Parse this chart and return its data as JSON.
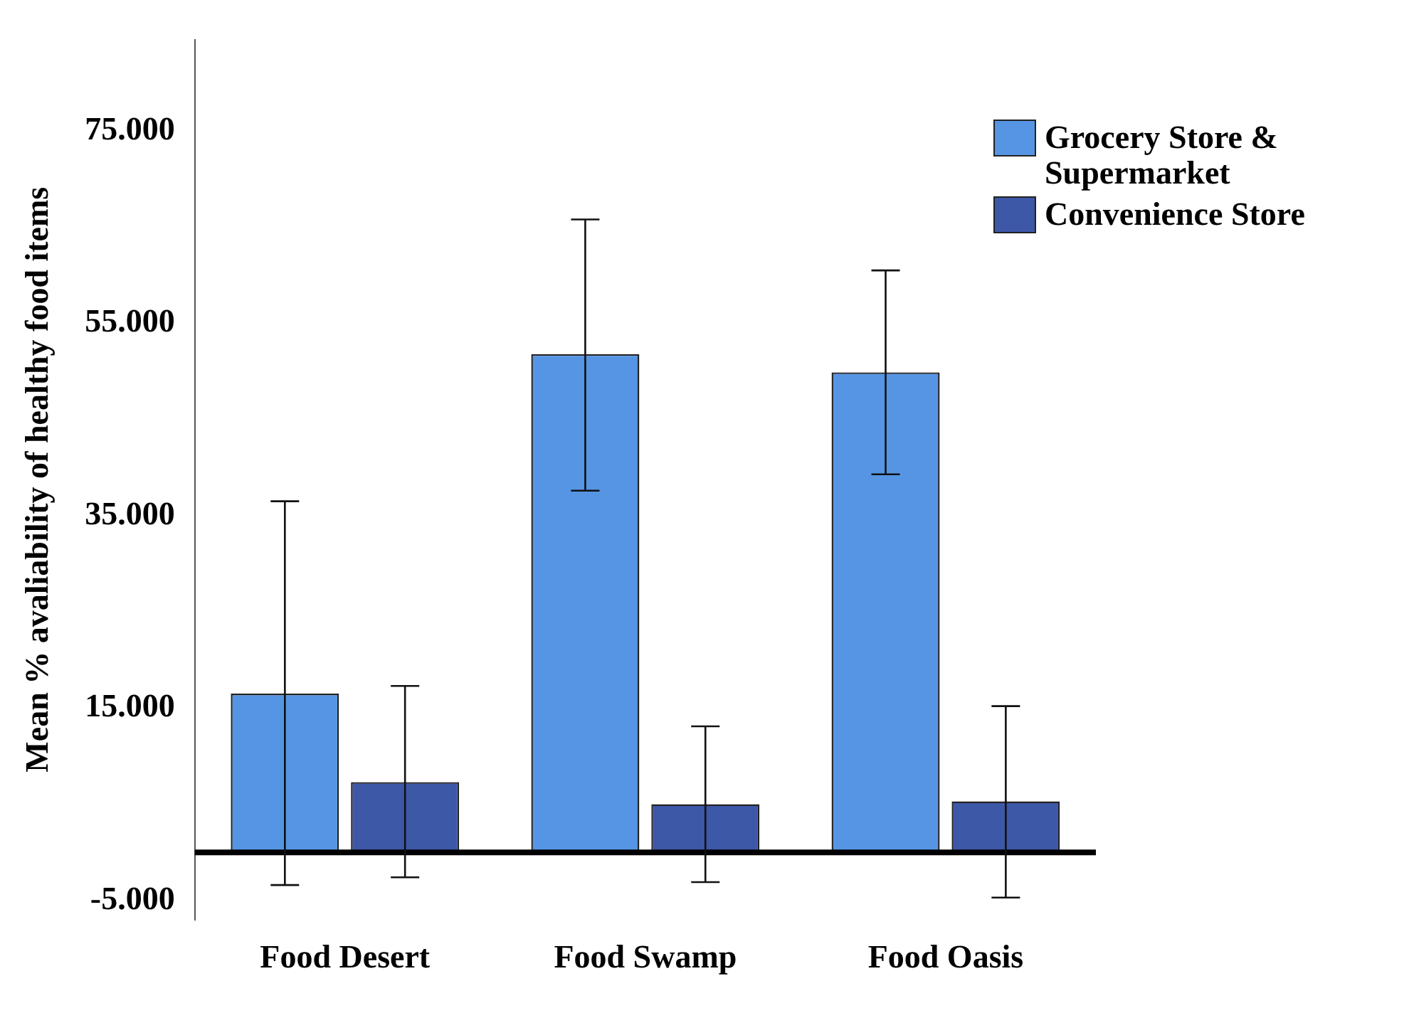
{
  "chart_data": {
    "type": "bar",
    "ylabel": "Mean % avaliability of healthy food items",
    "categories": [
      "Food Desert",
      "Food Swamp",
      "Food Oasis"
    ],
    "series": [
      {
        "name": "Grocery Store & Supermarket",
        "color": "#5595e3",
        "values": [
          16.5,
          51.8,
          49.9
        ],
        "errors": [
          [
            -3.4,
            36.5
          ],
          [
            37.6,
            65.8
          ],
          [
            39.3,
            60.5
          ]
        ]
      },
      {
        "name": "Convenience Store",
        "color": "#3e58a8",
        "values": [
          7.3,
          5.0,
          5.3
        ],
        "errors": [
          [
            -2.6,
            17.3
          ],
          [
            -3.1,
            13.1
          ],
          [
            -4.7,
            15.2
          ]
        ]
      }
    ],
    "ylim": [
      -7,
      84.5
    ],
    "yticks": [
      {
        "value": -5,
        "label": "-5.000"
      },
      {
        "value": 15,
        "label": "15.000"
      },
      {
        "value": 35,
        "label": "35.000"
      },
      {
        "value": 55,
        "label": "55.000"
      },
      {
        "value": 75,
        "label": "75.000"
      }
    ],
    "ref_lines": [
      {
        "axis": "y",
        "value": 0,
        "color": "#000000"
      }
    ],
    "grid": false,
    "legend": "top right"
  }
}
